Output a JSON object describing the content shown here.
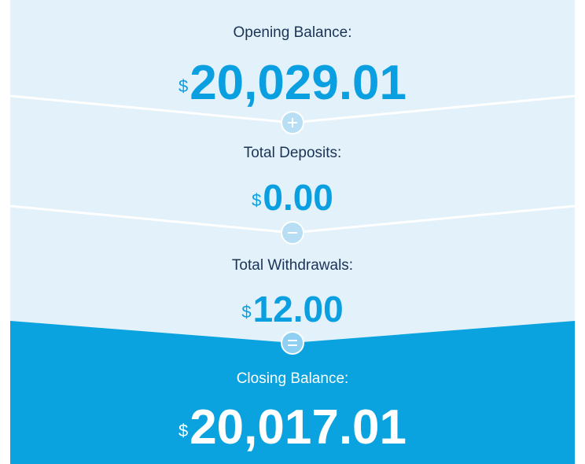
{
  "summary": {
    "sections": [
      {
        "label": "Opening Balance:",
        "currency": "$",
        "amount": "20,029.01"
      },
      {
        "label": "Total Deposits:",
        "currency": "$",
        "amount": "0.00"
      },
      {
        "label": "Total Withdrawals:",
        "currency": "$",
        "amount": "12.00"
      },
      {
        "label": "Closing Balance:",
        "currency": "$",
        "amount": "20,017.01"
      }
    ]
  }
}
